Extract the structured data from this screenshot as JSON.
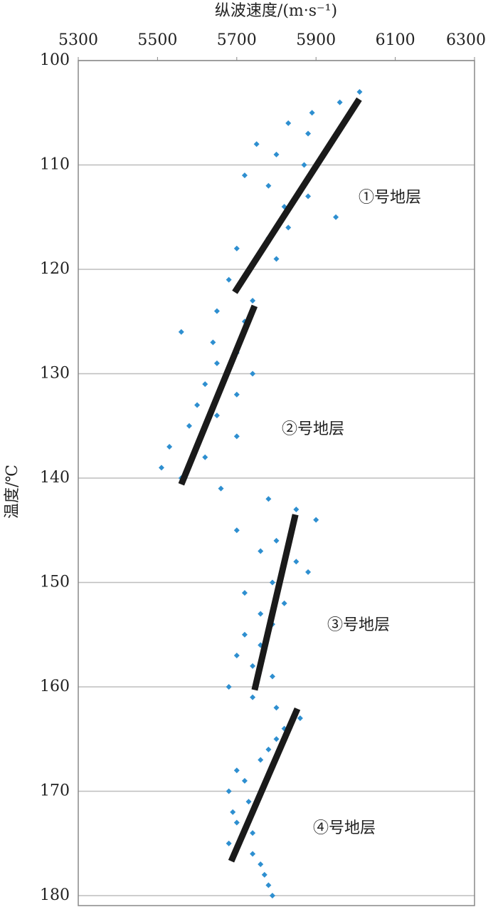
{
  "chart_data": {
    "type": "scatter",
    "xlabel": "纵波速度/(m·s⁻¹)",
    "ylabel": "温度/℃",
    "xlim": [
      5300,
      6300
    ],
    "xticks": [
      5300,
      5500,
      5700,
      5900,
      6100,
      6300
    ],
    "ylim": [
      100,
      180
    ],
    "yticks": [
      100,
      110,
      120,
      130,
      140,
      150,
      160,
      170,
      180
    ],
    "y_inverted": true,
    "x_axis_top": true,
    "grid": true,
    "series": [
      {
        "color": "#2e8fd0",
        "x": [
          6010,
          5960,
          5890,
          5830,
          5880,
          5750,
          5800,
          5870,
          5720,
          5780,
          5880,
          5820,
          5950,
          5830,
          5780,
          5700,
          5800,
          5730,
          5680,
          5700,
          5740,
          5650,
          5720,
          5560,
          5640,
          5700,
          5650,
          5740,
          5620,
          5700,
          5600,
          5650,
          5580,
          5700,
          5530,
          5620,
          5510,
          5560,
          5660,
          5780,
          5850,
          5900,
          5700,
          5800,
          5760,
          5850,
          5880,
          5790,
          5720,
          5820,
          5760,
          5790,
          5720,
          5760,
          5700,
          5740,
          5790,
          5680,
          5740,
          5800,
          5860,
          5820,
          5800,
          5780,
          5760,
          5700,
          5720,
          5680,
          5730,
          5690,
          5700,
          5740,
          5680,
          5740,
          5760,
          5770,
          5780,
          5790
        ],
        "y": [
          103,
          104,
          105,
          106,
          107,
          108,
          109,
          110,
          111,
          112,
          113,
          114,
          115,
          116,
          117,
          118,
          119,
          120,
          121,
          122,
          123,
          124,
          125,
          126,
          127,
          128,
          129,
          130,
          131,
          132,
          133,
          134,
          135,
          136,
          137,
          138,
          139,
          140,
          141,
          142,
          143,
          144,
          145,
          146,
          147,
          148,
          149,
          150,
          151,
          152,
          153,
          154,
          155,
          156,
          157,
          158,
          159,
          160,
          161,
          162,
          163,
          164,
          165,
          166,
          167,
          168,
          169,
          170,
          171,
          172,
          173,
          174,
          175,
          176,
          177,
          178,
          179,
          180
        ]
      }
    ],
    "trend_lines": [
      {
        "color": "#1a1a1a",
        "x": [
          6009,
          5695
        ],
        "y": [
          103.7,
          122.2
        ]
      },
      {
        "color": "#1a1a1a",
        "x": [
          5745,
          5560
        ],
        "y": [
          123.5,
          140.6
        ]
      },
      {
        "color": "#1a1a1a",
        "x": [
          5848,
          5745
        ],
        "y": [
          143.5,
          160.3
        ]
      },
      {
        "color": "#1a1a1a",
        "x": [
          5853,
          5686
        ],
        "y": [
          162.1,
          176.7
        ]
      }
    ],
    "annotations": [
      "①号地层",
      "②号地层",
      "③号地层",
      "④号地层"
    ]
  }
}
